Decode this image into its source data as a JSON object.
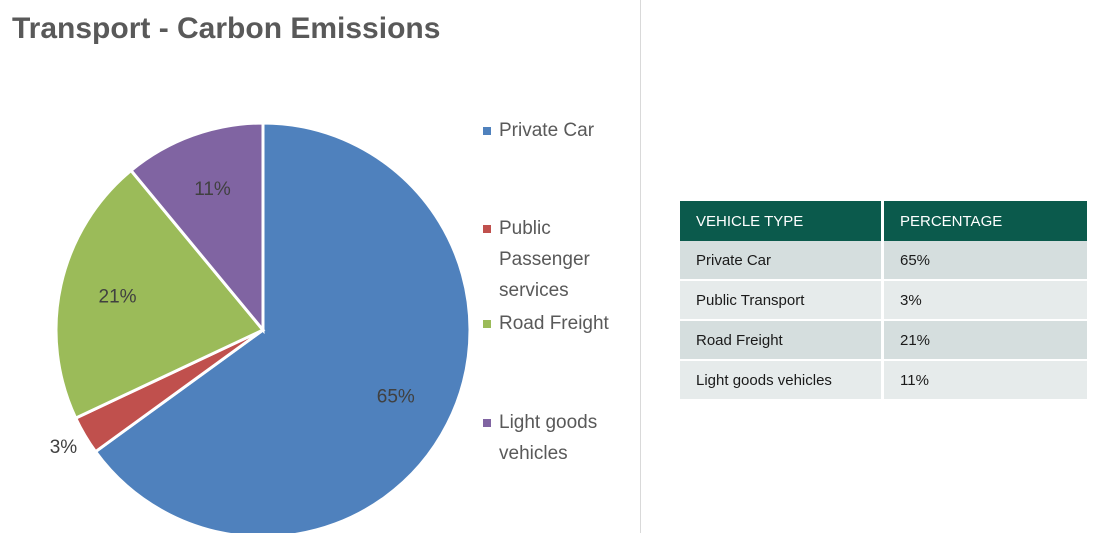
{
  "chart_data": {
    "type": "pie",
    "title": "Transport - Carbon Emissions",
    "categories": [
      "Private Car",
      "Public Passenger services",
      "Road Freight",
      "Light goods vehicles"
    ],
    "values": [
      65,
      3,
      21,
      11
    ],
    "value_labels": [
      "65%",
      "3%",
      "21%",
      "11%"
    ],
    "colors": [
      "#4f81bd",
      "#c0504d",
      "#9bbb59",
      "#8064a2"
    ],
    "legend": "right"
  },
  "table": {
    "header": [
      "VEHICLE TYPE",
      "PERCENTAGE"
    ],
    "rows": [
      [
        "Private Car",
        "65%"
      ],
      [
        "Public Transport",
        "3%"
      ],
      [
        "Road Freight",
        "21%"
      ],
      [
        "Light goods vehicles",
        "11%"
      ]
    ]
  }
}
